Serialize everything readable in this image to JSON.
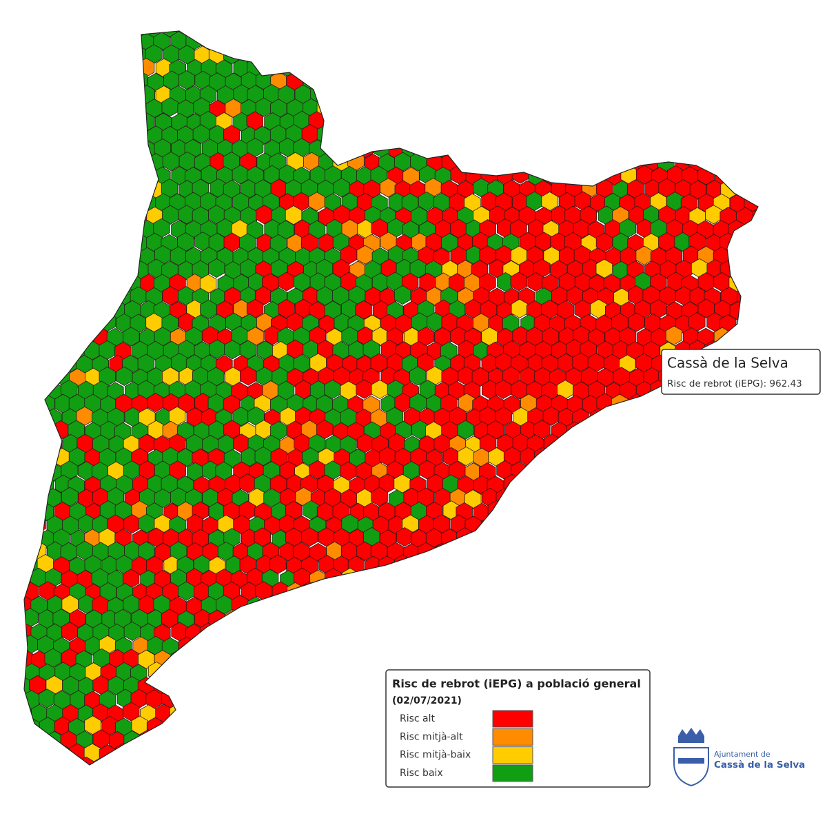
{
  "tooltip": {
    "title": "Cassà de la Selva",
    "text": "Risc de rebrot (iEPG): 962.43"
  },
  "legend": {
    "title": "Risc de rebrot (iEPG) a població general",
    "subtitle": "(02/07/2021)",
    "items": [
      {
        "label": "Risc alt",
        "color": "#ff0000"
      },
      {
        "label": "Risc mitjà-alt",
        "color": "#ff8c00"
      },
      {
        "label": "Risc mitjà-baix",
        "color": "#ffcc00"
      },
      {
        "label": "Risc baix",
        "color": "#129e12"
      }
    ]
  },
  "logo": {
    "line1": "Ajuntament de",
    "line2": "Cassà de la Selva"
  }
}
